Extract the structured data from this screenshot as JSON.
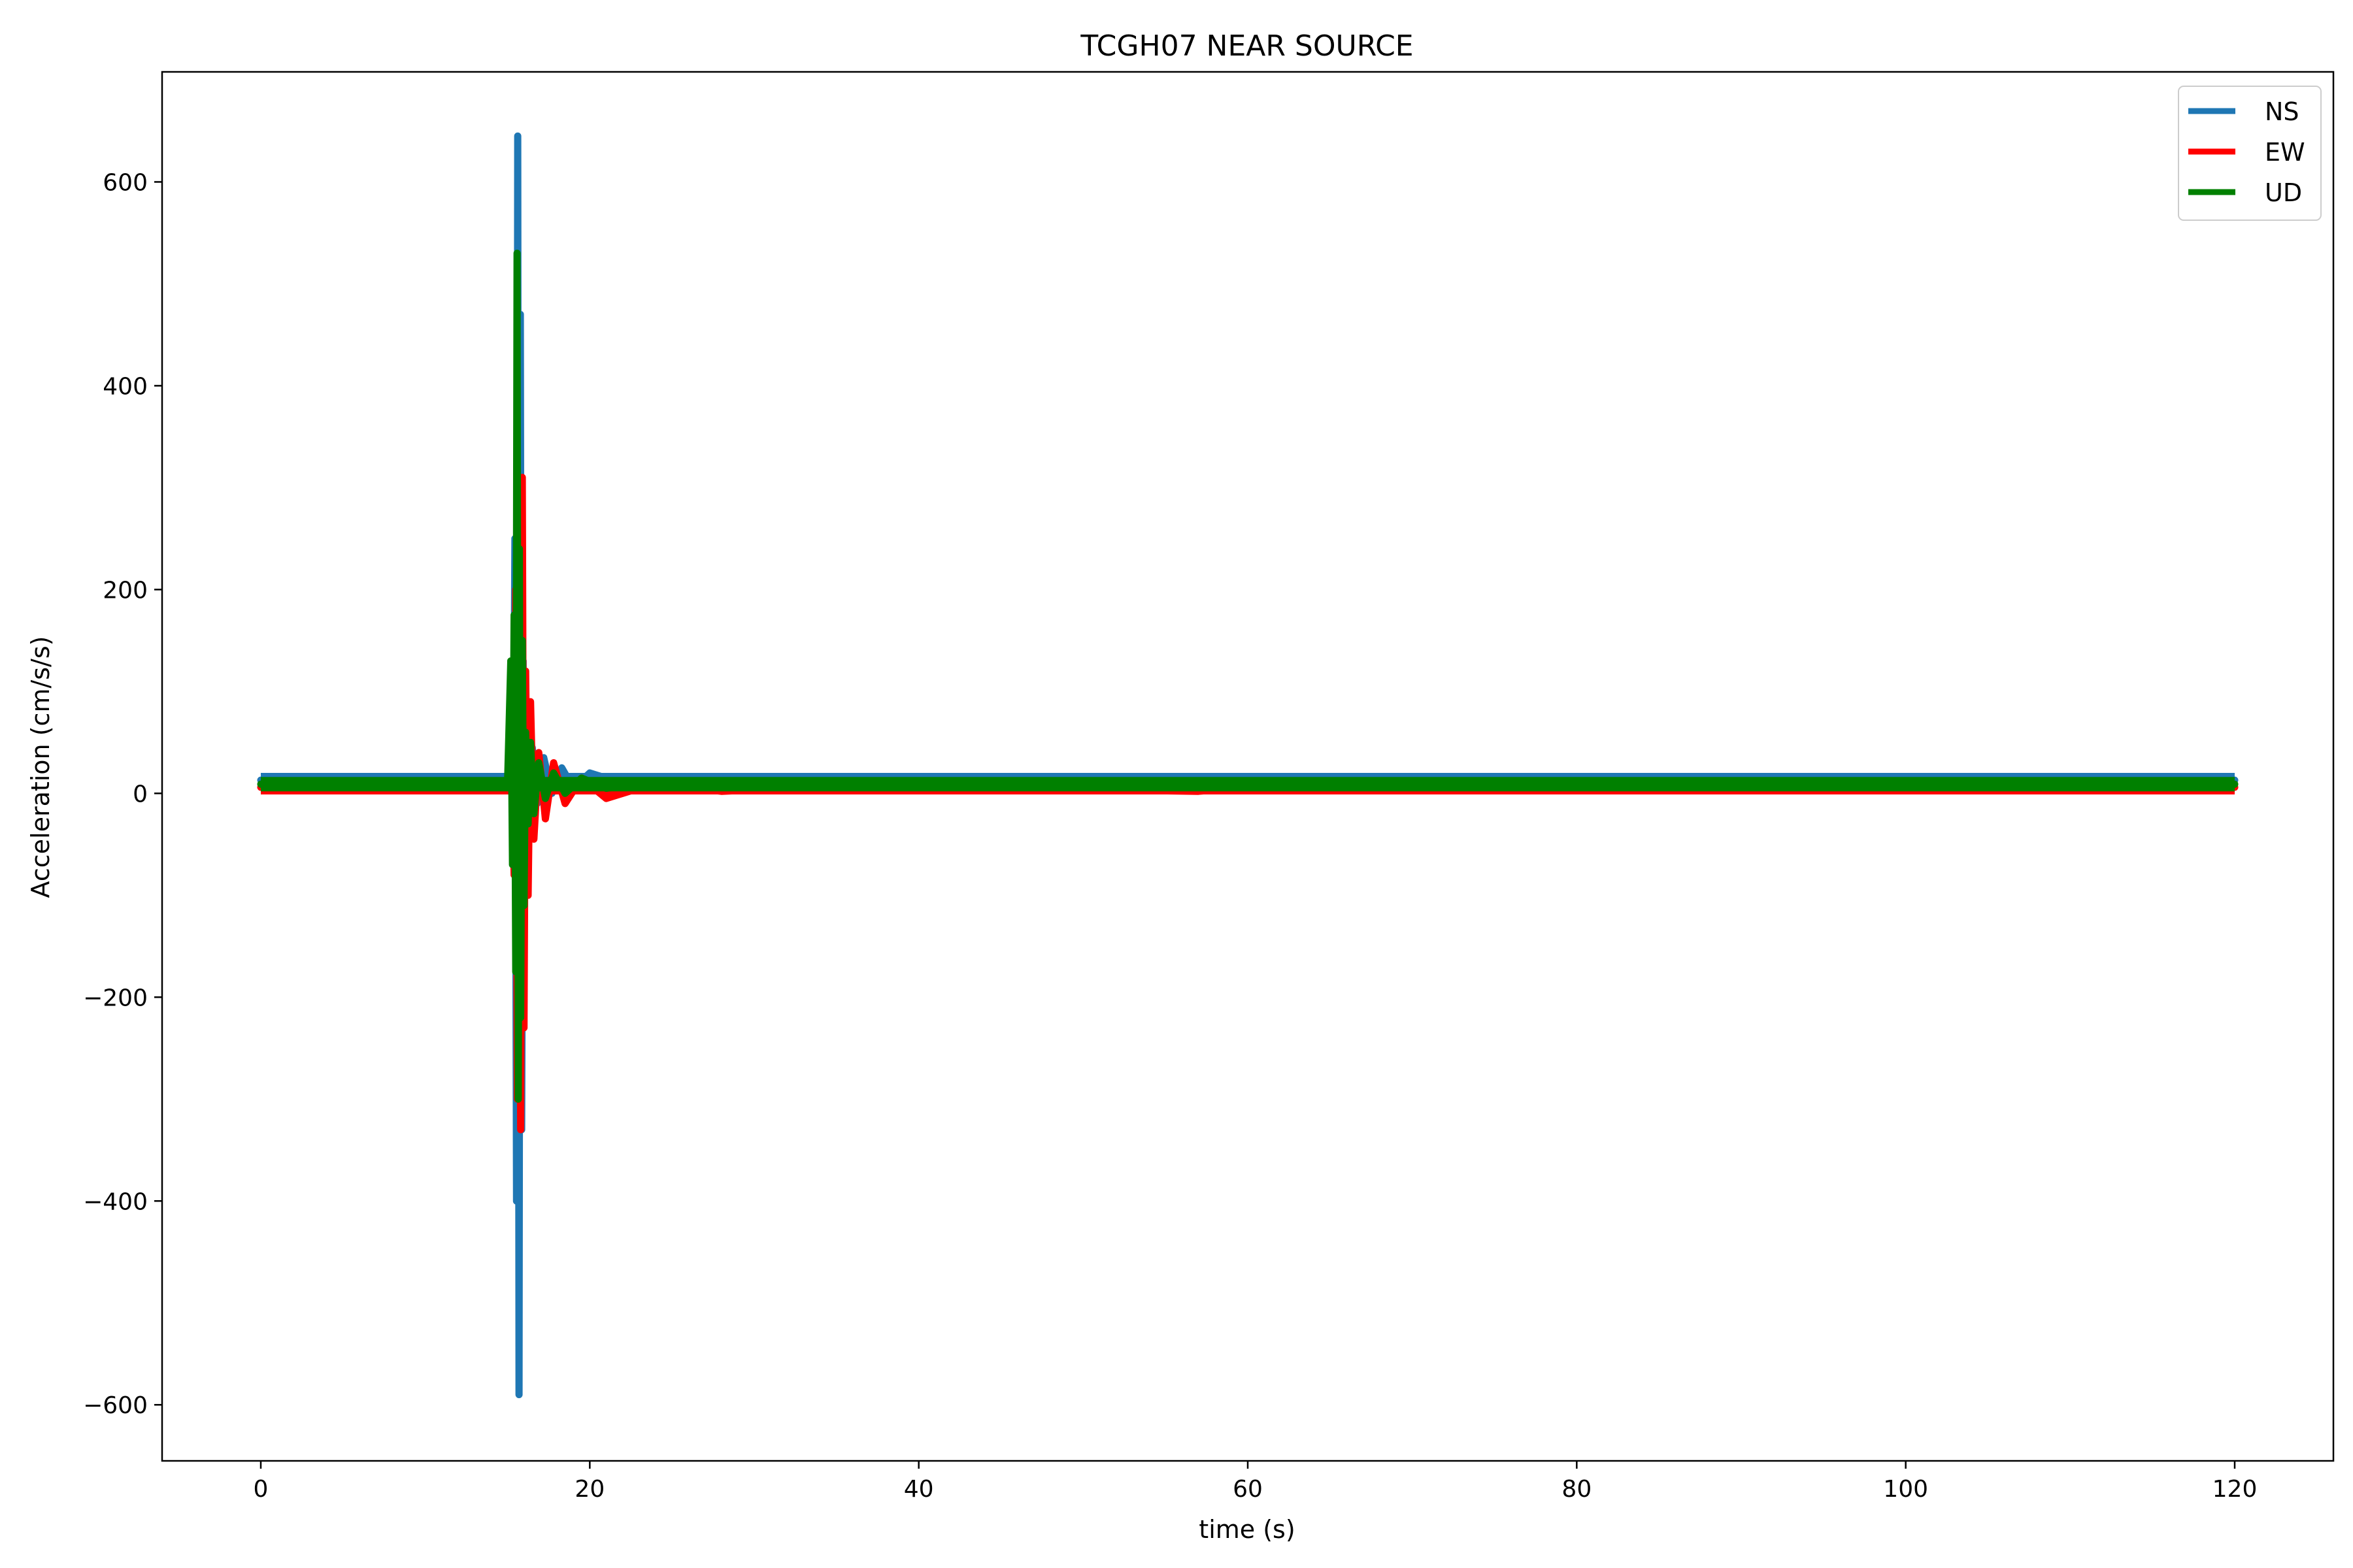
{
  "chart_data": {
    "type": "line",
    "title": "TCGH07 NEAR SOURCE",
    "xlabel": "time (s)",
    "ylabel": "Acceleration (cm/s/s)",
    "xlim": [
      -6,
      126
    ],
    "ylim": [
      -655,
      708
    ],
    "xticks": [
      0,
      20,
      40,
      60,
      80,
      100,
      120
    ],
    "xtick_labels": [
      "0",
      "20",
      "40",
      "60",
      "80",
      "100",
      "120"
    ],
    "yticks": [
      -600,
      -400,
      -200,
      0,
      200,
      400,
      600
    ],
    "ytick_labels": [
      "−600",
      "−400",
      "−200",
      "0",
      "200",
      "400",
      "600"
    ],
    "grid": false,
    "legend_position": "top-right",
    "series": [
      {
        "name": "NS",
        "color": "#1f77b4",
        "baseline": 13,
        "x": [
          0,
          15.0,
          15.2,
          15.35,
          15.45,
          15.55,
          15.62,
          15.7,
          15.78,
          15.86,
          15.95,
          16.05,
          16.15,
          16.3,
          16.5,
          16.8,
          17.2,
          17.7,
          18.3,
          19.0,
          20.0,
          22.0,
          25.0,
          30.0,
          40.0,
          57.0,
          60.0,
          80.0,
          100.0,
          120.0
        ],
        "y": [
          13,
          13,
          60,
          -60,
          250,
          -400,
          645,
          -590,
          470,
          -330,
          130,
          -100,
          80,
          -40,
          45,
          -10,
          35,
          0,
          25,
          5,
          20,
          10,
          16,
          12,
          14,
          13,
          13,
          14,
          13,
          13
        ]
      },
      {
        "name": "EW",
        "color": "#ff0000",
        "baseline": 6,
        "x": [
          0,
          15.0,
          15.25,
          15.4,
          15.5,
          15.6,
          15.7,
          15.8,
          15.9,
          16.0,
          16.1,
          16.25,
          16.4,
          16.6,
          16.9,
          17.3,
          17.8,
          18.5,
          19.5,
          21.0,
          24.0,
          28.0,
          35.0,
          57.0,
          60.0,
          80.0,
          100.0,
          120.0
        ],
        "y": [
          6,
          6,
          40,
          -80,
          200,
          -300,
          260,
          -330,
          310,
          -230,
          120,
          -100,
          90,
          -45,
          40,
          -25,
          30,
          -10,
          15,
          -5,
          10,
          2,
          7,
          2,
          6,
          6,
          6,
          6
        ]
      },
      {
        "name": "UD",
        "color": "#008000",
        "baseline": 9,
        "x": [
          0,
          15.0,
          15.2,
          15.3,
          15.4,
          15.5,
          15.58,
          15.65,
          15.72,
          15.8,
          15.9,
          16.0,
          16.1,
          16.25,
          16.4,
          16.6,
          16.9,
          17.3,
          17.8,
          18.5,
          19.5,
          21.0,
          24.0,
          30.0,
          40.0,
          60.0,
          80.0,
          100.0,
          120.0
        ],
        "y": [
          9,
          9,
          130,
          -70,
          175,
          -175,
          530,
          -300,
          240,
          -220,
          150,
          -110,
          60,
          -30,
          50,
          -20,
          30,
          -5,
          20,
          0,
          15,
          5,
          12,
          8,
          10,
          9,
          9,
          9,
          9
        ]
      }
    ]
  }
}
